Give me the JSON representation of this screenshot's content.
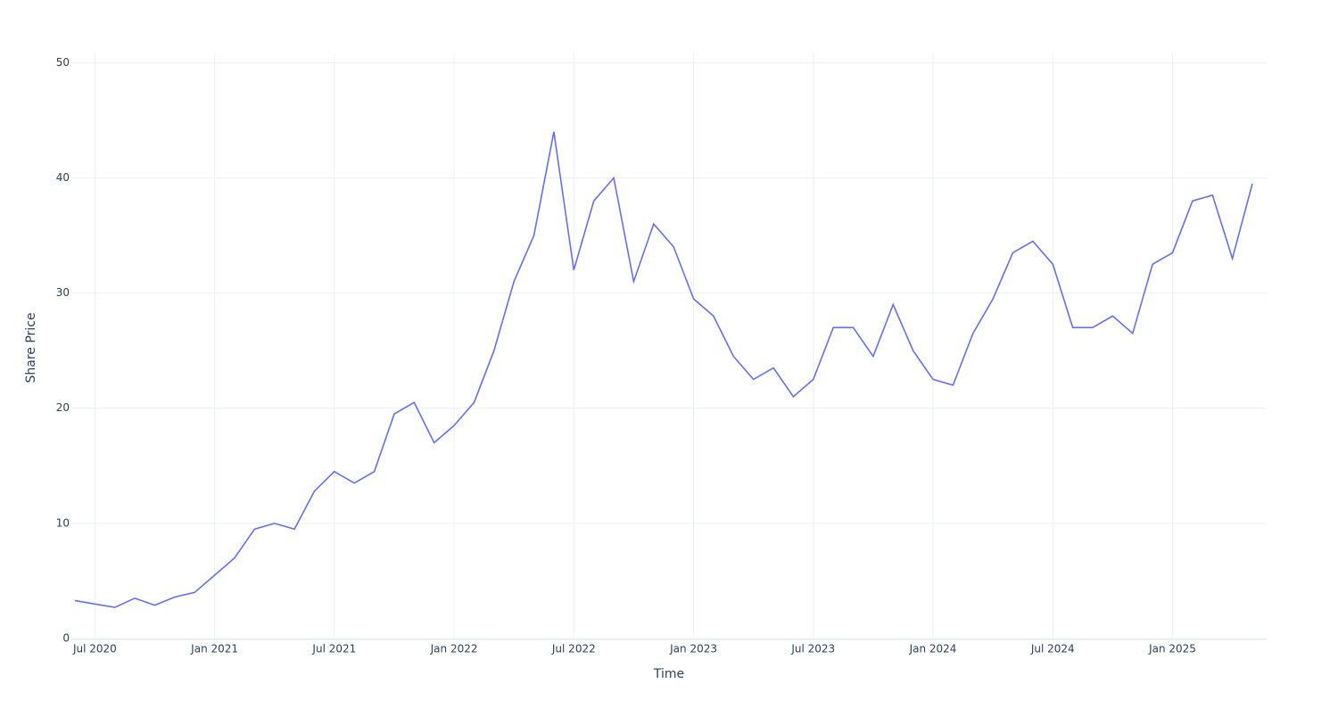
{
  "chart_data": {
    "type": "line",
    "x_label": "Time",
    "y_label": "Share Price",
    "x": [
      "2020-06",
      "2020-07",
      "2020-08",
      "2020-09",
      "2020-10",
      "2020-11",
      "2020-12",
      "2021-01",
      "2021-02",
      "2021-03",
      "2021-04",
      "2021-05",
      "2021-06",
      "2021-07",
      "2021-08",
      "2021-09",
      "2021-10",
      "2021-11",
      "2021-12",
      "2022-01",
      "2022-02",
      "2022-03",
      "2022-04",
      "2022-05",
      "2022-06",
      "2022-07",
      "2022-08",
      "2022-09",
      "2022-10",
      "2022-11",
      "2022-12",
      "2023-01",
      "2023-02",
      "2023-03",
      "2023-04",
      "2023-05",
      "2023-06",
      "2023-07",
      "2023-08",
      "2023-09",
      "2023-10",
      "2023-11",
      "2023-12",
      "2024-01",
      "2024-02",
      "2024-03",
      "2024-04",
      "2024-05",
      "2024-06",
      "2024-07",
      "2024-08",
      "2024-09",
      "2024-10",
      "2024-11",
      "2024-12",
      "2025-01",
      "2025-02",
      "2025-03",
      "2025-04",
      "2025-05"
    ],
    "series": [
      {
        "name": "Share Price",
        "color": "#636efa",
        "values": [
          3.3,
          3.0,
          2.7,
          3.5,
          2.9,
          3.6,
          4.0,
          5.5,
          7.0,
          9.5,
          10.0,
          9.5,
          12.8,
          14.5,
          13.5,
          14.5,
          19.5,
          20.5,
          17.0,
          18.5,
          20.5,
          25.0,
          31.0,
          35.0,
          44.0,
          32.0,
          38.0,
          40.0,
          31.0,
          36.0,
          34.0,
          29.5,
          28.0,
          24.5,
          22.5,
          23.5,
          21.0,
          22.5,
          27.0,
          27.0,
          24.5,
          29.0,
          25.0,
          22.5,
          22.0,
          26.5,
          29.5,
          33.5,
          34.5,
          32.5,
          27.0,
          27.0,
          28.0,
          26.5,
          32.5,
          33.5,
          38.0,
          38.5,
          33.0,
          39.5
        ]
      }
    ],
    "xlim": [
      "2020-06",
      "2025-05"
    ],
    "xticks": [
      {
        "value": "2020-07",
        "label": "Jul 2020"
      },
      {
        "value": "2021-01",
        "label": "Jan 2021"
      },
      {
        "value": "2021-07",
        "label": "Jul 2021"
      },
      {
        "value": "2022-01",
        "label": "Jan 2022"
      },
      {
        "value": "2022-07",
        "label": "Jul 2022"
      },
      {
        "value": "2023-01",
        "label": "Jan 2023"
      },
      {
        "value": "2023-07",
        "label": "Jul 2023"
      },
      {
        "value": "2024-01",
        "label": "Jan 2024"
      },
      {
        "value": "2024-07",
        "label": "Jul 2024"
      },
      {
        "value": "2025-01",
        "label": "Jan 2025"
      }
    ],
    "ylim": [
      0,
      50.8
    ],
    "yticks": [
      0,
      10,
      20,
      30,
      40,
      50
    ],
    "grid": true
  }
}
